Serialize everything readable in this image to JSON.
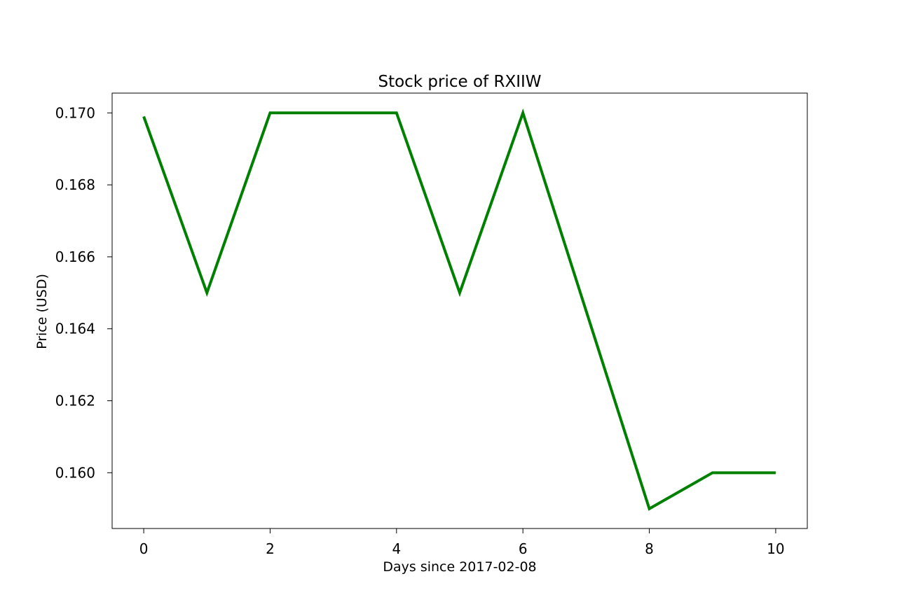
{
  "chart_data": {
    "type": "line",
    "title": "Stock price of RXIIW",
    "xlabel": "Days since 2017-02-08",
    "ylabel": "Price (USD)",
    "x": [
      0,
      1,
      2,
      3,
      4,
      5,
      6,
      7,
      8,
      9,
      10
    ],
    "series": [
      {
        "values": [
          0.1699,
          0.165,
          0.17,
          0.17,
          0.17,
          0.165,
          0.17,
          0.1645,
          0.159,
          0.16,
          0.16
        ],
        "color": "#008000"
      }
    ],
    "xlim": [
      -0.5,
      10.5
    ],
    "ylim": [
      0.15845,
      0.17055
    ],
    "xticks": [
      0,
      2,
      4,
      6,
      8,
      10
    ],
    "xtick_labels": [
      "0",
      "2",
      "4",
      "6",
      "8",
      "10"
    ],
    "yticks": [
      0.16,
      0.162,
      0.164,
      0.166,
      0.168,
      0.17
    ],
    "ytick_labels": [
      "0.160",
      "0.162",
      "0.164",
      "0.166",
      "0.168",
      "0.170"
    ],
    "grid": false,
    "legend": "none"
  }
}
